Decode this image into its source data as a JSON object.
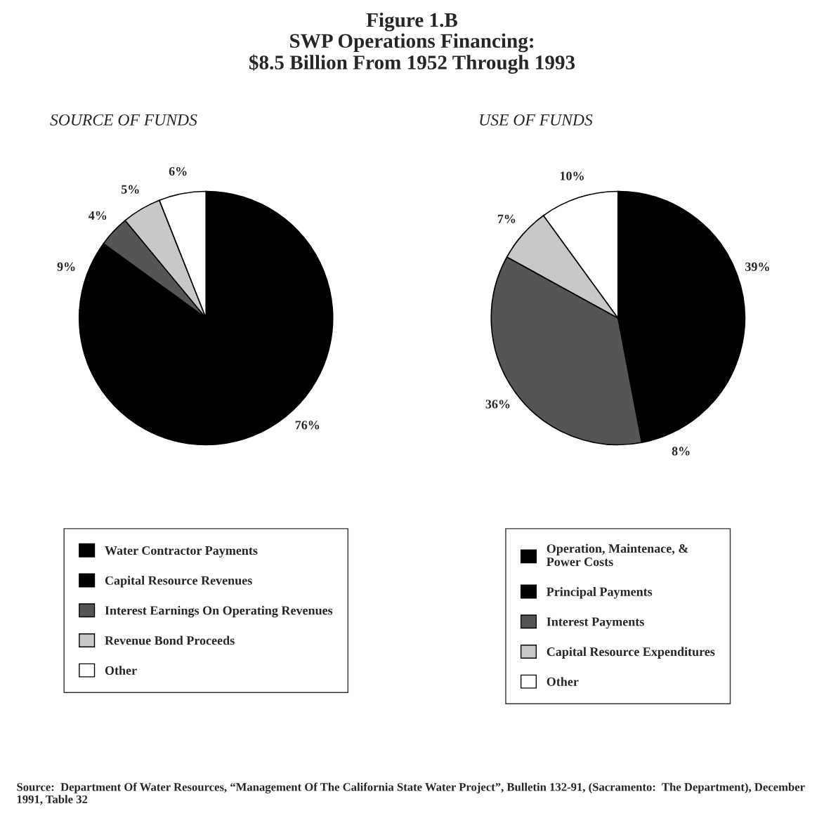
{
  "chart_data": [
    {
      "type": "pie",
      "title": "Figure 1.B\nSWP Operations Financing:\n$8.5 Billion From 1952 Through 1993",
      "subtitle": "SOURCE OF FUNDS",
      "categories": [
        "Water Contractor Payments",
        "Capital Resource Revenues",
        "Interest Earnings On Operating Revenues",
        "Revenue Bond Proceeds",
        "Other"
      ],
      "values": [
        76,
        9,
        4,
        5,
        6
      ],
      "value_labels": [
        "76%",
        "9%",
        "4%",
        "5%",
        "6%"
      ],
      "colors": [
        "#000000",
        "#000000",
        "#555555",
        "#c8c8c8",
        "#ffffff"
      ],
      "legend": "bottom",
      "annotations": [
        "Source:  Department Of Water Resources, “Management Of The California State Water Project”, Bulletin 132-91, (Sacramento:  The Department), December 1991, Table 32"
      ]
    },
    {
      "type": "pie",
      "subtitle": "USE OF FUNDS",
      "categories": [
        "Operation, Maintenace, &\nPower Costs",
        "Principal Payments",
        "Interest Payments",
        "Capital Resource Expenditures",
        "Other"
      ],
      "values": [
        39,
        8,
        36,
        7,
        10
      ],
      "value_labels": [
        "39%",
        "8%",
        "36%",
        "7%",
        "10%"
      ],
      "colors": [
        "#000000",
        "#000000",
        "#555555",
        "#c8c8c8",
        "#ffffff"
      ],
      "legend": "bottom"
    }
  ]
}
